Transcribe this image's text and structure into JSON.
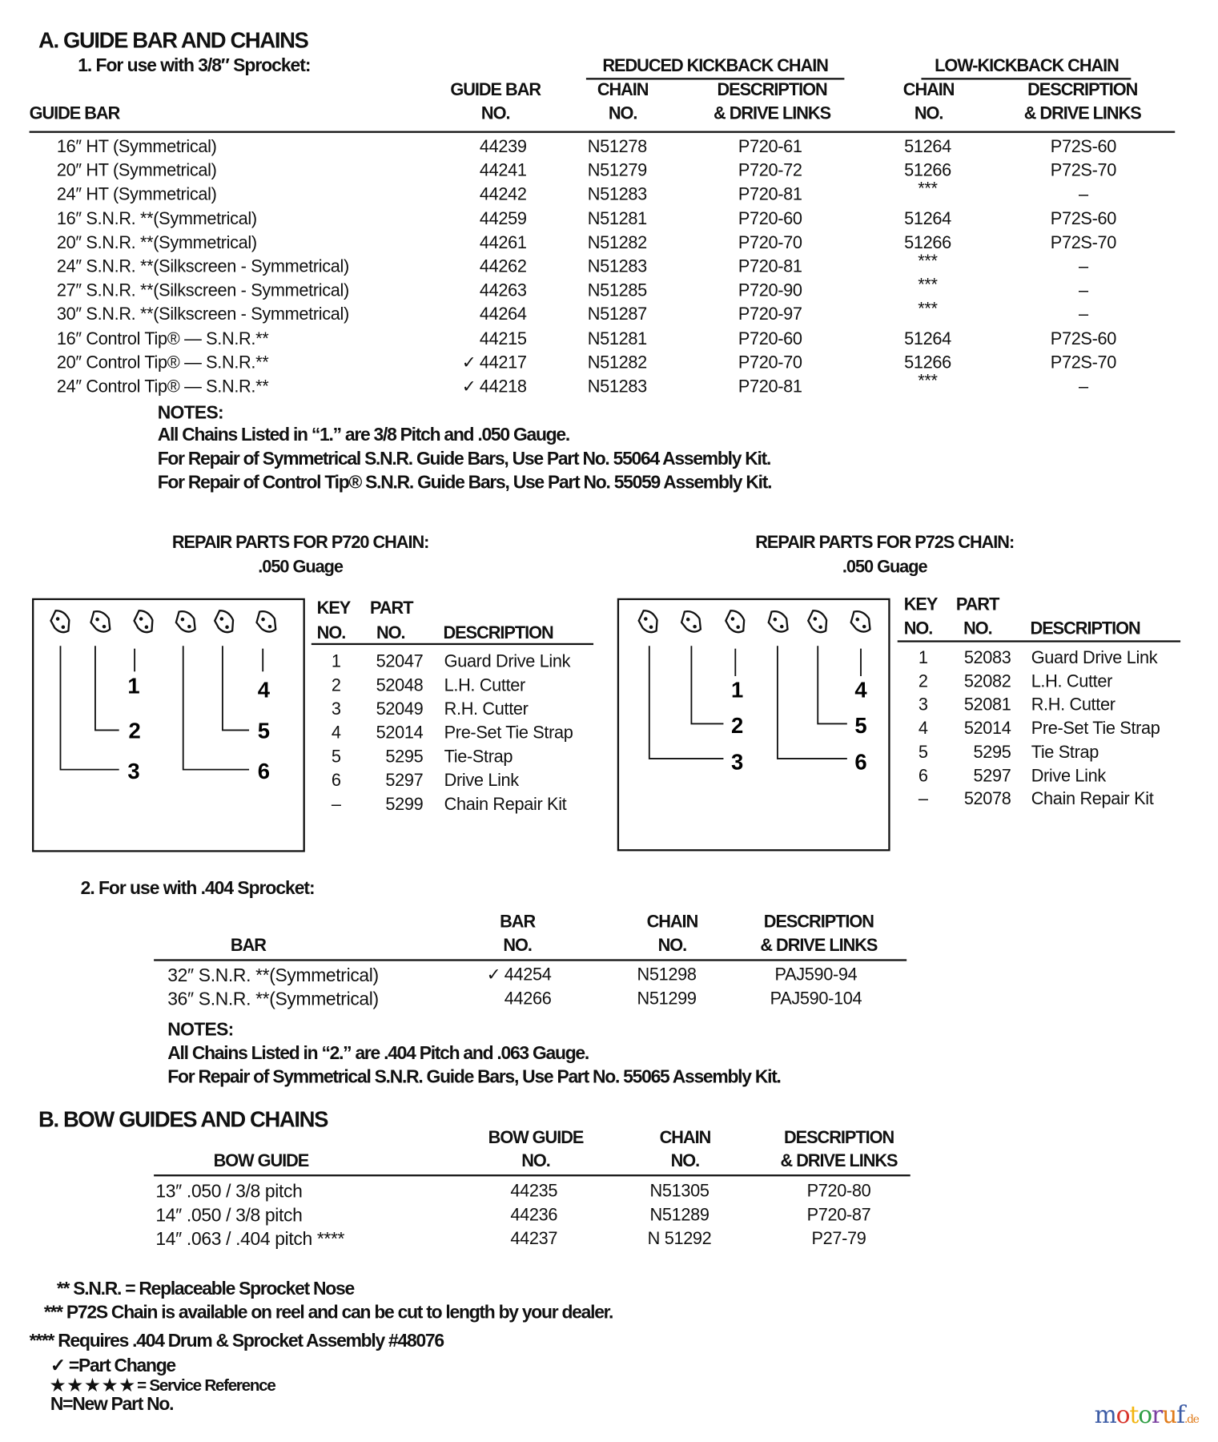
{
  "section_a": {
    "title": "A.  GUIDE BAR AND CHAINS",
    "sub1_title": "1.  For use with 3/8″ Sprocket:",
    "group_reduced": "REDUCED KICKBACK CHAIN",
    "group_low": "LOW-KICKBACK CHAIN",
    "headers": {
      "guide_bar": "GUIDE BAR",
      "guide_bar_no_1": "GUIDE BAR",
      "guide_bar_no_2": "NO.",
      "rk_chain_1": "CHAIN",
      "rk_chain_2": "NO.",
      "rk_desc_1": "DESCRIPTION",
      "rk_desc_2": "& DRIVE LINKS",
      "lk_chain_1": "CHAIN",
      "lk_chain_2": "NO.",
      "lk_desc_1": "DESCRIPTION",
      "lk_desc_2": "& DRIVE LINKS"
    },
    "rows": [
      {
        "bar": "16″ HT (Symmetrical)",
        "mark": "",
        "bar_no": "44239",
        "rk_chain": "N51278",
        "rk_desc": "P720-61",
        "lk_chain": "51264",
        "lk_desc": "P72S-60"
      },
      {
        "bar": "20″ HT (Symmetrical)",
        "mark": "",
        "bar_no": "44241",
        "rk_chain": "N51279",
        "rk_desc": "P720-72",
        "lk_chain": "51266",
        "lk_desc": "P72S-70"
      },
      {
        "bar": "24″ HT (Symmetrical)",
        "mark": "",
        "bar_no": "44242",
        "rk_chain": "N51283",
        "rk_desc": "P720-81",
        "lk_chain": "***",
        "lk_desc": "–"
      },
      {
        "bar": "16″ S.N.R. **(Symmetrical)",
        "mark": "",
        "bar_no": "44259",
        "rk_chain": "N51281",
        "rk_desc": "P720-60",
        "lk_chain": "51264",
        "lk_desc": "P72S-60"
      },
      {
        "bar": "20″ S.N.R. **(Symmetrical)",
        "mark": "",
        "bar_no": "44261",
        "rk_chain": "N51282",
        "rk_desc": "P720-70",
        "lk_chain": "51266",
        "lk_desc": "P72S-70"
      },
      {
        "bar": "24″ S.N.R. **(Silkscreen - Symmetrical)",
        "mark": "",
        "bar_no": "44262",
        "rk_chain": "N51283",
        "rk_desc": "P720-81",
        "lk_chain": "***",
        "lk_desc": "–"
      },
      {
        "bar": "27″ S.N.R. **(Silkscreen - Symmetrical)",
        "mark": "",
        "bar_no": "44263",
        "rk_chain": "N51285",
        "rk_desc": "P720-90",
        "lk_chain": "***",
        "lk_desc": "–"
      },
      {
        "bar": "30″ S.N.R. **(Silkscreen - Symmetrical)",
        "mark": "",
        "bar_no": "44264",
        "rk_chain": "N51287",
        "rk_desc": "P720-97",
        "lk_chain": "***",
        "lk_desc": "–"
      },
      {
        "bar": "16″ Control Tip® — S.N.R.**",
        "mark": "",
        "bar_no": "44215",
        "rk_chain": "N51281",
        "rk_desc": "P720-60",
        "lk_chain": "51264",
        "lk_desc": "P72S-60"
      },
      {
        "bar": "20″ Control Tip® — S.N.R.**",
        "mark": "✓",
        "bar_no": "44217",
        "rk_chain": "N51282",
        "rk_desc": "P720-70",
        "lk_chain": "51266",
        "lk_desc": "P72S-70"
      },
      {
        "bar": "24″ Control Tip® — S.N.R.**",
        "mark": "✓",
        "bar_no": "44218",
        "rk_chain": "N51283",
        "rk_desc": "P720-81",
        "lk_chain": "***",
        "lk_desc": "–"
      }
    ],
    "notes_title": "NOTES:",
    "notes": [
      "All Chains Listed in “1.” are 3/8 Pitch and .050 Gauge.",
      "For Repair of Symmetrical S.N.R. Guide Bars, Use Part No. 55064 Assembly Kit.",
      "For Repair of Control Tip®  S.N.R. Guide Bars, Use Part No. 55059 Assembly Kit."
    ]
  },
  "repair_p720": {
    "title": "REPAIR PARTS FOR P720 CHAIN:",
    "subtitle": ".050 Guage",
    "headers": {
      "key_1": "KEY",
      "key_2": "NO.",
      "part_1": "PART",
      "part_2": "NO.",
      "desc": "DESCRIPTION"
    },
    "callouts": [
      "1",
      "2",
      "3",
      "4",
      "5",
      "6"
    ],
    "rows": [
      {
        "key": "1",
        "part": "52047",
        "desc": "Guard Drive Link"
      },
      {
        "key": "2",
        "part": "52048",
        "desc": "L.H. Cutter"
      },
      {
        "key": "3",
        "part": "52049",
        "desc": "R.H. Cutter"
      },
      {
        "key": "4",
        "part": "52014",
        "desc": "Pre-Set Tie Strap"
      },
      {
        "key": "5",
        "part": "5295",
        "desc": "Tie-Strap"
      },
      {
        "key": "6",
        "part": "5297",
        "desc": "Drive Link"
      },
      {
        "key": "–",
        "part": "5299",
        "desc": "Chain Repair Kit"
      }
    ]
  },
  "repair_p72s": {
    "title": "REPAIR PARTS FOR P72S CHAIN:",
    "subtitle": ".050 Guage",
    "headers": {
      "key_1": "KEY",
      "key_2": "NO.",
      "part_1": "PART",
      "part_2": "NO.",
      "desc": "DESCRIPTION"
    },
    "callouts": [
      "1",
      "2",
      "3",
      "4",
      "5",
      "6"
    ],
    "rows": [
      {
        "key": "1",
        "part": "52083",
        "desc": "Guard Drive Link"
      },
      {
        "key": "2",
        "part": "52082",
        "desc": "L.H. Cutter"
      },
      {
        "key": "3",
        "part": "52081",
        "desc": "R.H. Cutter"
      },
      {
        "key": "4",
        "part": "52014",
        "desc": "Pre-Set Tie Strap"
      },
      {
        "key": "5",
        "part": "5295",
        "desc": "Tie Strap"
      },
      {
        "key": "6",
        "part": "5297",
        "desc": "Drive Link"
      },
      {
        "key": "–",
        "part": "52078",
        "desc": "Chain Repair Kit"
      }
    ]
  },
  "section_a2": {
    "title": "2.  For use with .404 Sprocket:",
    "headers": {
      "bar": "BAR",
      "bar_no_1": "BAR",
      "bar_no_2": "NO.",
      "chain_1": "CHAIN",
      "chain_2": "NO.",
      "desc_1": "DESCRIPTION",
      "desc_2": "& DRIVE LINKS"
    },
    "rows": [
      {
        "bar": "32″ S.N.R. **(Symmetrical)",
        "mark": "✓",
        "bar_no": "44254",
        "chain": "N51298",
        "desc": "PAJ590-94"
      },
      {
        "bar": "36″ S.N.R. **(Symmetrical)",
        "mark": "",
        "bar_no": "44266",
        "chain": "N51299",
        "desc": "PAJ590-104"
      }
    ],
    "notes_title": "NOTES:",
    "notes": [
      "All Chains Listed in “2.” are .404 Pitch and .063 Gauge.",
      "For Repair of Symmetrical S.N.R. Guide Bars, Use Part No. 55065 Assembly Kit."
    ]
  },
  "section_b": {
    "title": "B.  BOW GUIDES AND CHAINS",
    "headers": {
      "guide": "BOW GUIDE",
      "guide_no_1": "BOW GUIDE",
      "guide_no_2": "NO.",
      "chain_1": "CHAIN",
      "chain_2": "NO.",
      "desc_1": "DESCRIPTION",
      "desc_2": "& DRIVE LINKS"
    },
    "rows": [
      {
        "guide": "13″ .050 / 3/8 pitch",
        "guide_no": "44235",
        "chain": "N51305",
        "desc": "P720-80"
      },
      {
        "guide": "14″ .050 / 3/8 pitch",
        "guide_no": "44236",
        "chain": "N51289",
        "desc": "P720-87"
      },
      {
        "guide": "14″ .063 / .404 pitch ****",
        "guide_no": "44237",
        "chain": "N 51292",
        "desc": "P27-79"
      }
    ]
  },
  "footnotes": [
    "** S.N.R. = Replaceable Sprocket Nose",
    "*** P72S Chain is available on reel and can be cut to length by your dealer.",
    "**** Requires .404 Drum & Sprocket Assembly #48076",
    "✓ =Part Change",
    "★ ★ ★ ★ ★ = Service Reference",
    "N=New Part No."
  ],
  "watermark": {
    "text": "motoruf",
    "suffix": ".de",
    "colors": [
      "#3b5ba5",
      "#d9342b",
      "#f2b50f",
      "#2f9e44",
      "#7a3fa0",
      "#e07b1a",
      "#3b5ba5"
    ]
  }
}
